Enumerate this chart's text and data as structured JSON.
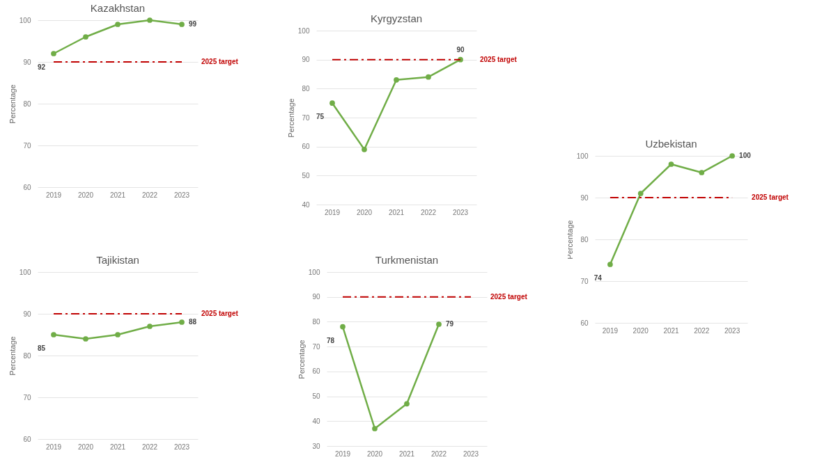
{
  "chart_data": [
    {
      "type": "line",
      "title": "Kazakhstan",
      "ylabel": "Percentage",
      "categories": [
        "2019",
        "2020",
        "2021",
        "2022",
        "2023"
      ],
      "series": [
        {
          "color": "#70ad47",
          "values": [
            92,
            96,
            99,
            100,
            99
          ],
          "value_labels": [
            "92",
            null,
            null,
            null,
            "99"
          ]
        }
      ],
      "ylim": [
        60,
        100
      ],
      "yticks": [
        60,
        70,
        80,
        90,
        100
      ],
      "grid": "y",
      "marker": "circle",
      "ref_lines": [
        {
          "axis": "y",
          "value": 90,
          "label": "2025 target",
          "color": "#c00000",
          "line_style": "dashed"
        }
      ]
    },
    {
      "type": "line",
      "title": "Kyrgyzstan",
      "ylabel": "Percentage",
      "categories": [
        "2019",
        "2020",
        "2021",
        "2022",
        "2023"
      ],
      "series": [
        {
          "color": "#70ad47",
          "values": [
            75,
            59,
            83,
            84,
            90
          ],
          "value_labels": [
            "75",
            null,
            null,
            null,
            "90"
          ]
        }
      ],
      "ylim": [
        40,
        100
      ],
      "yticks": [
        40,
        50,
        60,
        70,
        80,
        90,
        100
      ],
      "grid": "y",
      "marker": "circle",
      "ref_lines": [
        {
          "axis": "y",
          "value": 90,
          "label": "2025 target",
          "color": "#c00000",
          "line_style": "dashed"
        }
      ]
    },
    {
      "type": "line",
      "title": "Uzbekistan",
      "ylabel": "Percentage",
      "categories": [
        "2019",
        "2020",
        "2021",
        "2022",
        "2023"
      ],
      "series": [
        {
          "color": "#70ad47",
          "values": [
            74,
            91,
            98,
            96,
            100
          ],
          "value_labels": [
            "74",
            null,
            null,
            null,
            "100"
          ]
        }
      ],
      "ylim": [
        60,
        100
      ],
      "yticks": [
        60,
        70,
        80,
        90,
        100
      ],
      "grid": "y",
      "marker": "circle",
      "ref_lines": [
        {
          "axis": "y",
          "value": 90,
          "label": "2025 target",
          "color": "#c00000",
          "line_style": "dashed"
        }
      ]
    },
    {
      "type": "line",
      "title": "Tajikistan",
      "ylabel": "Percentage",
      "categories": [
        "2019",
        "2020",
        "2021",
        "2022",
        "2023"
      ],
      "series": [
        {
          "color": "#70ad47",
          "values": [
            85,
            84,
            85,
            87,
            88
          ],
          "value_labels": [
            "85",
            null,
            null,
            null,
            "88"
          ]
        }
      ],
      "ylim": [
        60,
        100
      ],
      "yticks": [
        60,
        70,
        80,
        90,
        100
      ],
      "grid": "y",
      "marker": "circle",
      "ref_lines": [
        {
          "axis": "y",
          "value": 90,
          "label": "2025 target",
          "color": "#c00000",
          "line_style": "dashed"
        }
      ]
    },
    {
      "type": "line",
      "title": "Turkmenistan",
      "ylabel": "Percentage",
      "categories": [
        "2019",
        "2020",
        "2021",
        "2022",
        "2023"
      ],
      "series": [
        {
          "color": "#70ad47",
          "values": [
            78,
            37,
            47,
            79,
            null
          ],
          "value_labels": [
            "78",
            null,
            null,
            "79",
            null
          ]
        }
      ],
      "ylim": [
        30,
        100
      ],
      "yticks": [
        30,
        40,
        50,
        60,
        70,
        80,
        90,
        100
      ],
      "grid": "y",
      "marker": "circle",
      "ref_lines": [
        {
          "axis": "y",
          "value": 90,
          "label": "2025 target",
          "color": "#c00000",
          "line_style": "dashed"
        }
      ]
    }
  ]
}
